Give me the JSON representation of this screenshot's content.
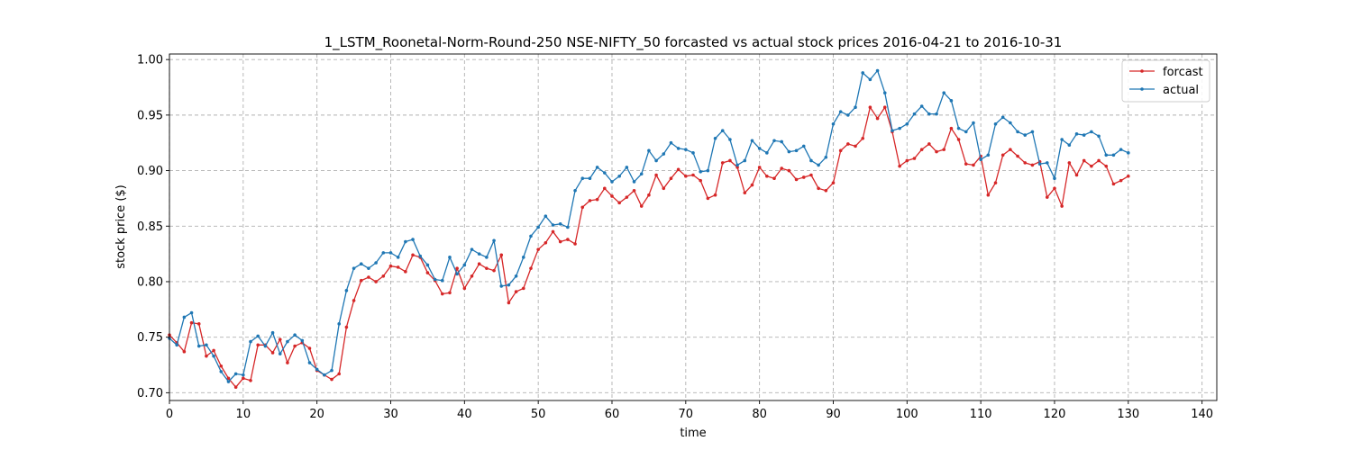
{
  "chart_data": {
    "type": "line",
    "title": "1_LSTM_Roonetal-Norm-Round-250 NSE-NIFTY_50 forcasted vs actual stock prices 2016-04-21 to 2016-10-31",
    "xlabel": "time",
    "ylabel": "stock price ($)",
    "xlim": [
      0,
      142
    ],
    "ylim": [
      0.693,
      1.005
    ],
    "xticks": [
      0,
      10,
      20,
      30,
      40,
      50,
      60,
      70,
      80,
      90,
      100,
      110,
      120,
      130,
      140
    ],
    "xtick_labels": [
      "0",
      "10",
      "20",
      "30",
      "40",
      "50",
      "60",
      "70",
      "80",
      "90",
      "100",
      "110",
      "120",
      "130",
      "140"
    ],
    "yticks": [
      0.7,
      0.75,
      0.8,
      0.85,
      0.9,
      0.95,
      1.0
    ],
    "ytick_labels": [
      "0.70",
      "0.75",
      "0.80",
      "0.85",
      "0.90",
      "0.95",
      "1.00"
    ],
    "grid": true,
    "legend_position": "top-right",
    "series": [
      {
        "name": "forcast",
        "color": "#d62728",
        "values": [
          0.752,
          0.745,
          0.737,
          0.763,
          0.762,
          0.733,
          0.738,
          0.724,
          0.713,
          0.705,
          0.713,
          0.711,
          0.743,
          0.743,
          0.736,
          0.748,
          0.727,
          0.742,
          0.745,
          0.74,
          0.72,
          0.716,
          0.712,
          0.717,
          0.759,
          0.783,
          0.801,
          0.804,
          0.8,
          0.805,
          0.814,
          0.813,
          0.809,
          0.824,
          0.822,
          0.808,
          0.801,
          0.789,
          0.79,
          0.812,
          0.794,
          0.805,
          0.816,
          0.812,
          0.81,
          0.824,
          0.781,
          0.791,
          0.794,
          0.812,
          0.829,
          0.835,
          0.845,
          0.836,
          0.838,
          0.834,
          0.867,
          0.873,
          0.874,
          0.884,
          0.877,
          0.871,
          0.876,
          0.882,
          0.868,
          0.878,
          0.896,
          0.884,
          0.893,
          0.901,
          0.895,
          0.896,
          0.891,
          0.875,
          0.878,
          0.907,
          0.909,
          0.903,
          0.88,
          0.887,
          0.903,
          0.895,
          0.893,
          0.902,
          0.9,
          0.892,
          0.894,
          0.896,
          0.884,
          0.882,
          0.889,
          0.918,
          0.924,
          0.922,
          0.929,
          0.957,
          0.947,
          0.957,
          0.935,
          0.904,
          0.909,
          0.911,
          0.919,
          0.924,
          0.917,
          0.919,
          0.938,
          0.928,
          0.906,
          0.905,
          0.913,
          0.878,
          0.889,
          0.914,
          0.919,
          0.913,
          0.907,
          0.905,
          0.908,
          0.876,
          0.884,
          0.868,
          0.907,
          0.896,
          0.909,
          0.904,
          0.909,
          0.904,
          0.888,
          0.891,
          0.895
        ]
      },
      {
        "name": "actual",
        "color": "#1f77b4",
        "values": [
          0.749,
          0.743,
          0.768,
          0.772,
          0.742,
          0.743,
          0.733,
          0.719,
          0.71,
          0.717,
          0.716,
          0.746,
          0.751,
          0.742,
          0.754,
          0.735,
          0.746,
          0.752,
          0.747,
          0.727,
          0.721,
          0.716,
          0.72,
          0.762,
          0.792,
          0.812,
          0.816,
          0.812,
          0.817,
          0.826,
          0.826,
          0.822,
          0.836,
          0.838,
          0.823,
          0.815,
          0.802,
          0.801,
          0.822,
          0.807,
          0.815,
          0.829,
          0.825,
          0.822,
          0.837,
          0.796,
          0.797,
          0.805,
          0.822,
          0.841,
          0.849,
          0.859,
          0.851,
          0.852,
          0.849,
          0.882,
          0.893,
          0.893,
          0.903,
          0.898,
          0.89,
          0.895,
          0.903,
          0.89,
          0.897,
          0.918,
          0.909,
          0.915,
          0.925,
          0.92,
          0.919,
          0.916,
          0.899,
          0.9,
          0.929,
          0.936,
          0.928,
          0.905,
          0.909,
          0.927,
          0.92,
          0.916,
          0.927,
          0.926,
          0.917,
          0.918,
          0.922,
          0.909,
          0.905,
          0.912,
          0.942,
          0.953,
          0.95,
          0.957,
          0.988,
          0.982,
          0.99,
          0.97,
          0.936,
          0.938,
          0.942,
          0.951,
          0.958,
          0.951,
          0.951,
          0.97,
          0.963,
          0.938,
          0.935,
          0.943,
          0.91,
          0.914,
          0.942,
          0.948,
          0.943,
          0.935,
          0.932,
          0.935,
          0.906,
          0.907,
          0.893,
          0.928,
          0.923,
          0.933,
          0.932,
          0.935,
          0.931,
          0.914,
          0.914,
          0.919,
          0.916
        ]
      }
    ]
  }
}
